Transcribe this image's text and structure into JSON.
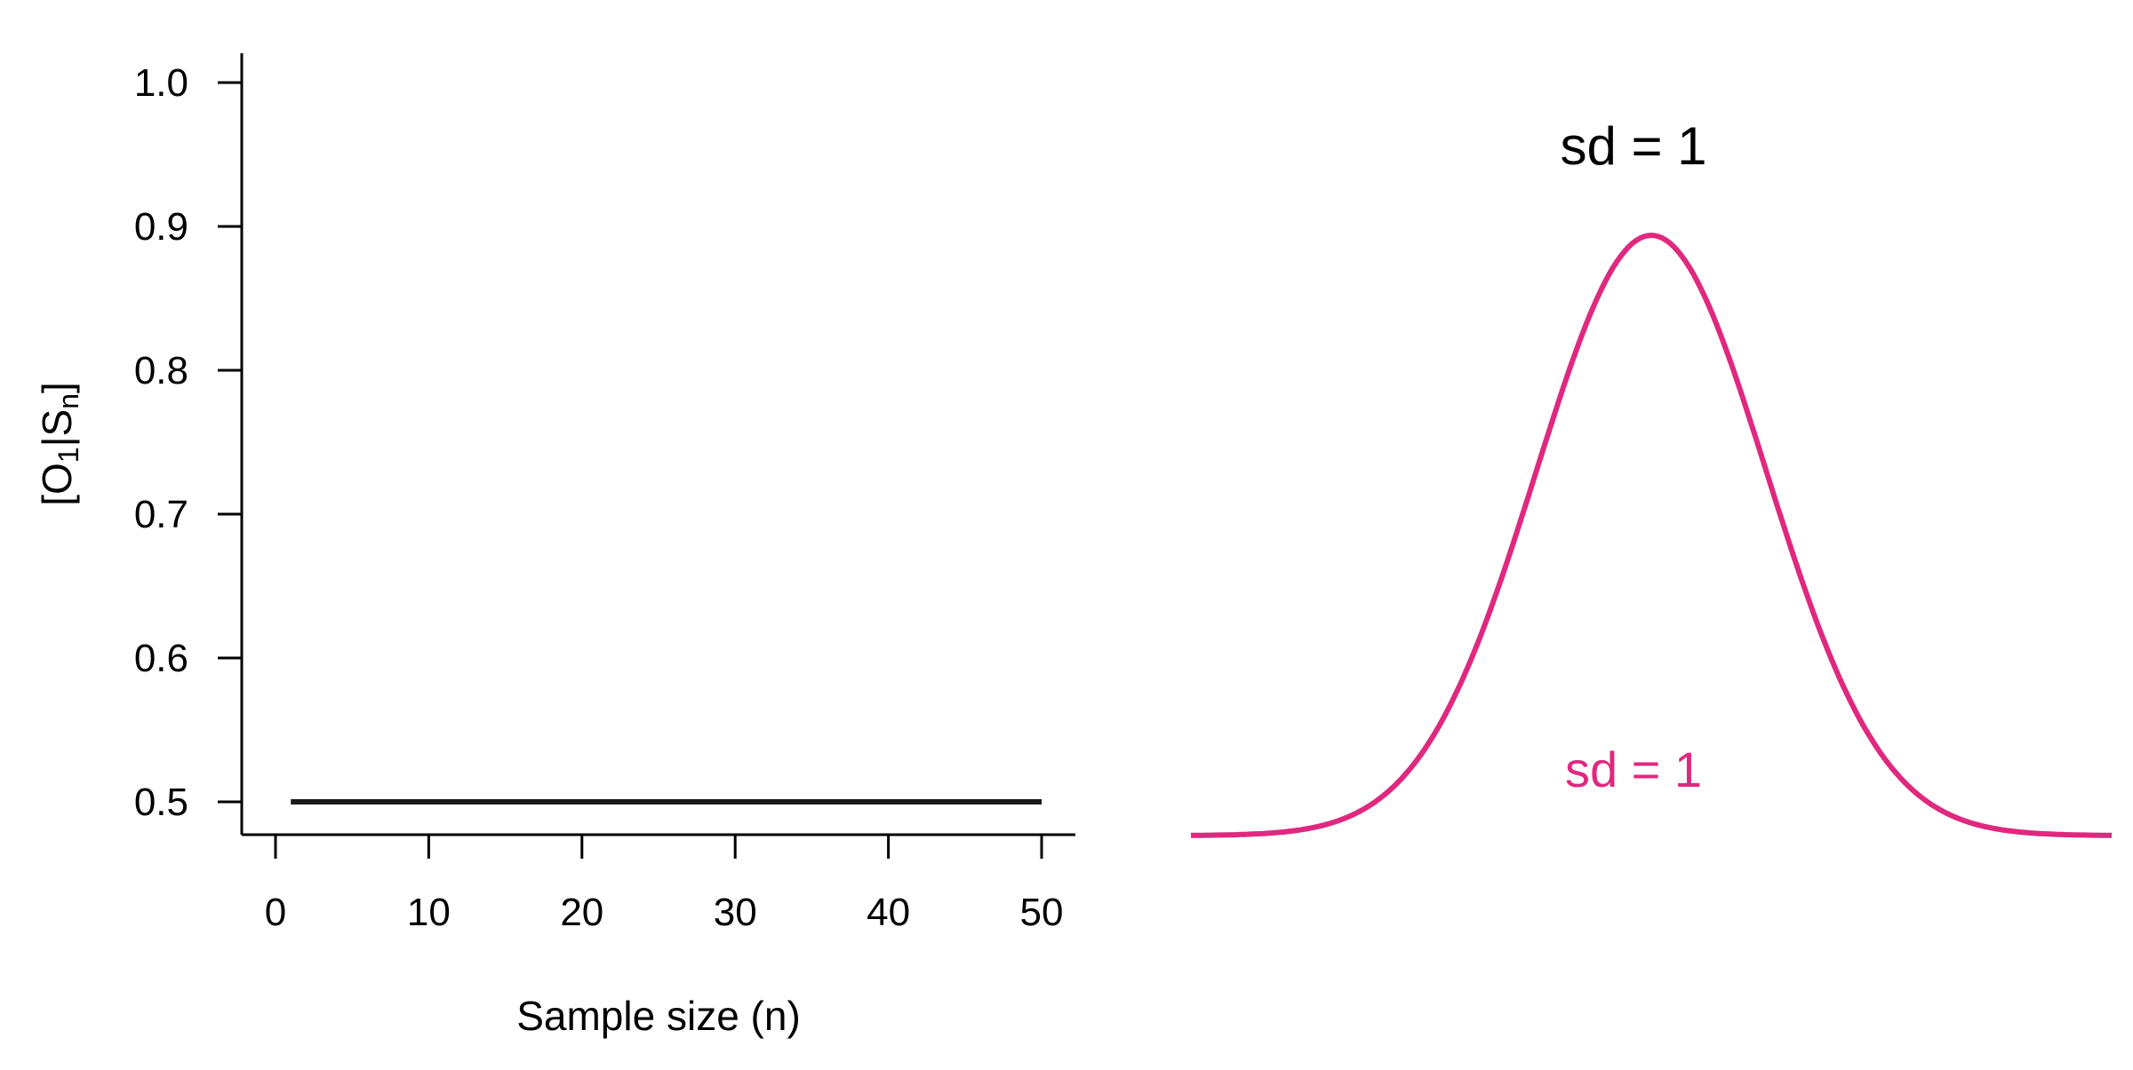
{
  "colors": {
    "axis": "#000000",
    "line": "#1a1a1a",
    "curve": "#e0287f"
  },
  "chart_data": [
    {
      "type": "line",
      "xlabel": "Sample size (n)",
      "ylabel": {
        "open": "[O",
        "sub1": "1",
        "mid": "|S",
        "sub2": "n",
        "close": "]"
      },
      "xlim": [
        0,
        50
      ],
      "ylim": [
        0.5,
        1.0
      ],
      "x_ticks": [
        0,
        10,
        20,
        30,
        40,
        50
      ],
      "x_tick_labels": [
        "0",
        "10",
        "20",
        "30",
        "40",
        "50"
      ],
      "y_ticks": [
        0.5,
        0.6,
        0.7,
        0.8,
        0.9,
        1.0
      ],
      "y_tick_labels": [
        "0.5",
        "0.6",
        "0.7",
        "0.8",
        "0.9",
        "1.0"
      ],
      "grid": false,
      "series": [
        {
          "x": [
            1,
            50
          ],
          "y": [
            0.5,
            0.5
          ]
        }
      ]
    },
    {
      "type": "line",
      "title": "sd = 1",
      "grid": false,
      "axes_visible": false,
      "xlim": [
        -4,
        4
      ],
      "curve": {
        "mean": 0,
        "sd": 1,
        "label": "sd = 1"
      }
    }
  ]
}
